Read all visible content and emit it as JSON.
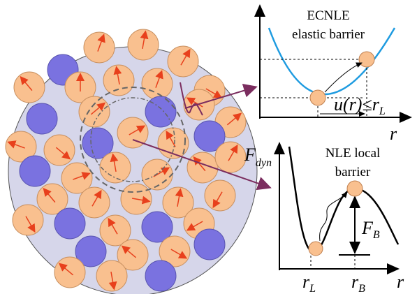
{
  "top_panel": {
    "title_line1": "ECNLE",
    "title_line2": "elastic barrier",
    "displacement_label": {
      "main": "u(r)≤r",
      "sub": "L"
    },
    "x_axis": "r"
  },
  "bottom_panel": {
    "y_axis": {
      "main": "F",
      "sub": "dyn"
    },
    "title_line1": "NLE local",
    "title_line2": "barrier",
    "barrier_label": {
      "main": "F",
      "sub": "B"
    },
    "x_marks": [
      {
        "main": "r",
        "sub": "L"
      },
      {
        "main": "r",
        "sub": "B"
      }
    ],
    "x_axis": "r"
  }
}
